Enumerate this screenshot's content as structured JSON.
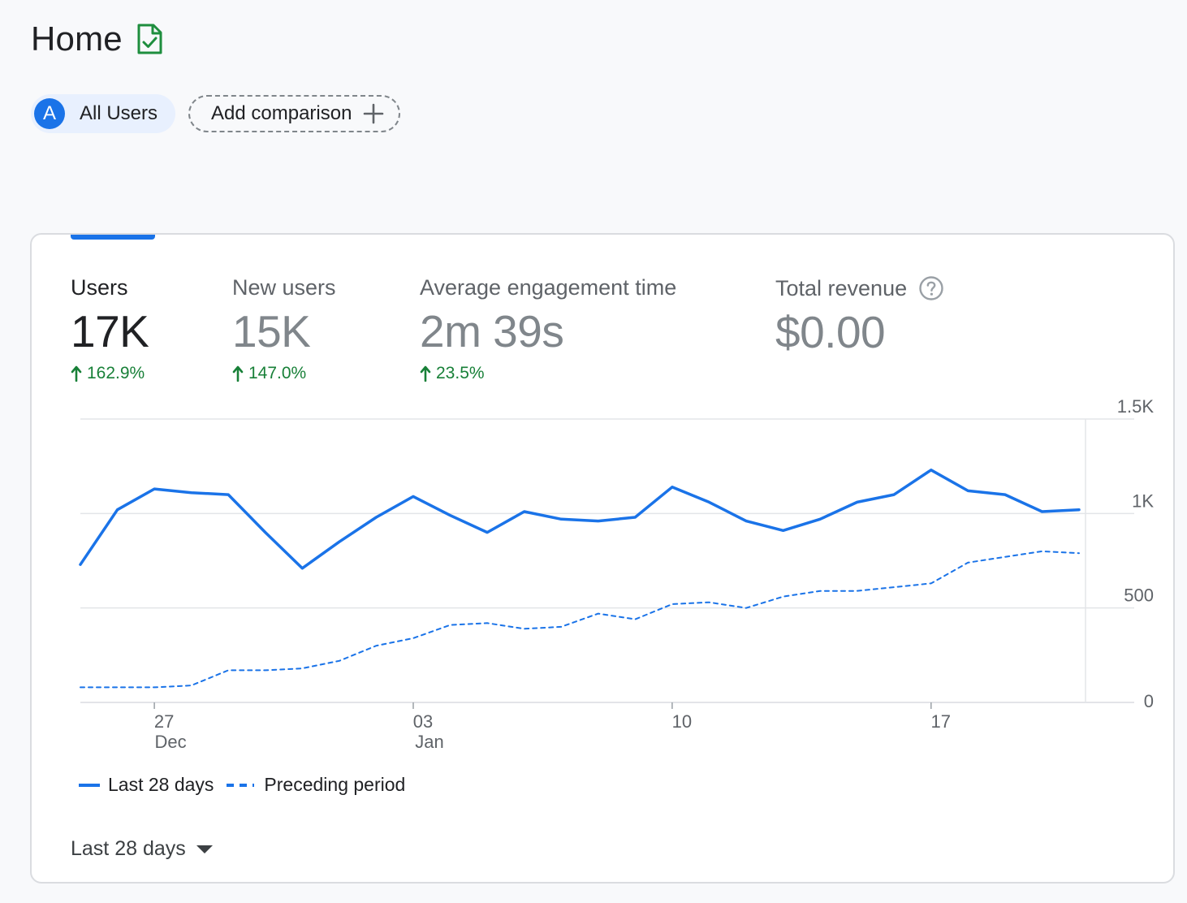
{
  "page": {
    "title": "Home"
  },
  "chips": {
    "avatar_letter": "A",
    "segment_label": "All Users",
    "add_comparison_label": "Add comparison"
  },
  "metrics": [
    {
      "label": "Users",
      "value": "17K",
      "change": "162.9%"
    },
    {
      "label": "New users",
      "value": "15K",
      "change": "147.0%"
    },
    {
      "label": "Average engagement time",
      "value": "2m 39s",
      "change": "23.5%"
    },
    {
      "label": "Total revenue",
      "value": "$0.00"
    }
  ],
  "colors": {
    "accent": "#1a73e8",
    "positive": "#188038",
    "title_icon": "#1e8e3e"
  },
  "icons": {
    "title": "verified-report-icon",
    "add": "plus-icon",
    "help": "help-circle-icon",
    "change": "arrow-up-icon",
    "dropdown": "caret-down-icon"
  },
  "chart_data": {
    "type": "line",
    "x": [
      "Dec 25",
      "Dec 26",
      "Dec 27",
      "Dec 28",
      "Dec 29",
      "Dec 30",
      "Dec 31",
      "Jan 1",
      "Jan 2",
      "Jan 3",
      "Jan 4",
      "Jan 5",
      "Jan 6",
      "Jan 7",
      "Jan 8",
      "Jan 9",
      "Jan 10",
      "Jan 11",
      "Jan 12",
      "Jan 13",
      "Jan 14",
      "Jan 15",
      "Jan 16",
      "Jan 17",
      "Jan 18",
      "Jan 19",
      "Jan 20",
      "Jan 21"
    ],
    "series": [
      {
        "name": "Last 28 days",
        "style": "solid",
        "values": [
          730,
          1020,
          1130,
          1110,
          1100,
          900,
          710,
          850,
          980,
          1090,
          990,
          900,
          1010,
          970,
          960,
          980,
          1140,
          1060,
          960,
          910,
          970,
          1060,
          1100,
          1230,
          1120,
          1100,
          1010,
          1020
        ]
      },
      {
        "name": "Preceding period",
        "style": "dashed",
        "values": [
          80,
          80,
          80,
          90,
          170,
          170,
          180,
          220,
          300,
          340,
          410,
          420,
          390,
          400,
          470,
          440,
          520,
          530,
          500,
          560,
          590,
          590,
          610,
          630,
          740,
          770,
          800,
          790
        ]
      }
    ],
    "x_ticks": [
      {
        "index": 2,
        "label": "27",
        "sublabel": "Dec"
      },
      {
        "index": 9,
        "label": "03",
        "sublabel": "Jan"
      },
      {
        "index": 16,
        "label": "10",
        "sublabel": ""
      },
      {
        "index": 23,
        "label": "17",
        "sublabel": ""
      }
    ],
    "y_ticks": [
      {
        "value": 0,
        "label": "0"
      },
      {
        "value": 500,
        "label": "500"
      },
      {
        "value": 1000,
        "label": "1K"
      },
      {
        "value": 1500,
        "label": "1.5K"
      }
    ],
    "ylim": [
      0,
      1500
    ],
    "grid": true,
    "y_axis_position": "right",
    "legend_position": "bottom-left"
  },
  "date_range": {
    "label": "Last 28 days"
  }
}
